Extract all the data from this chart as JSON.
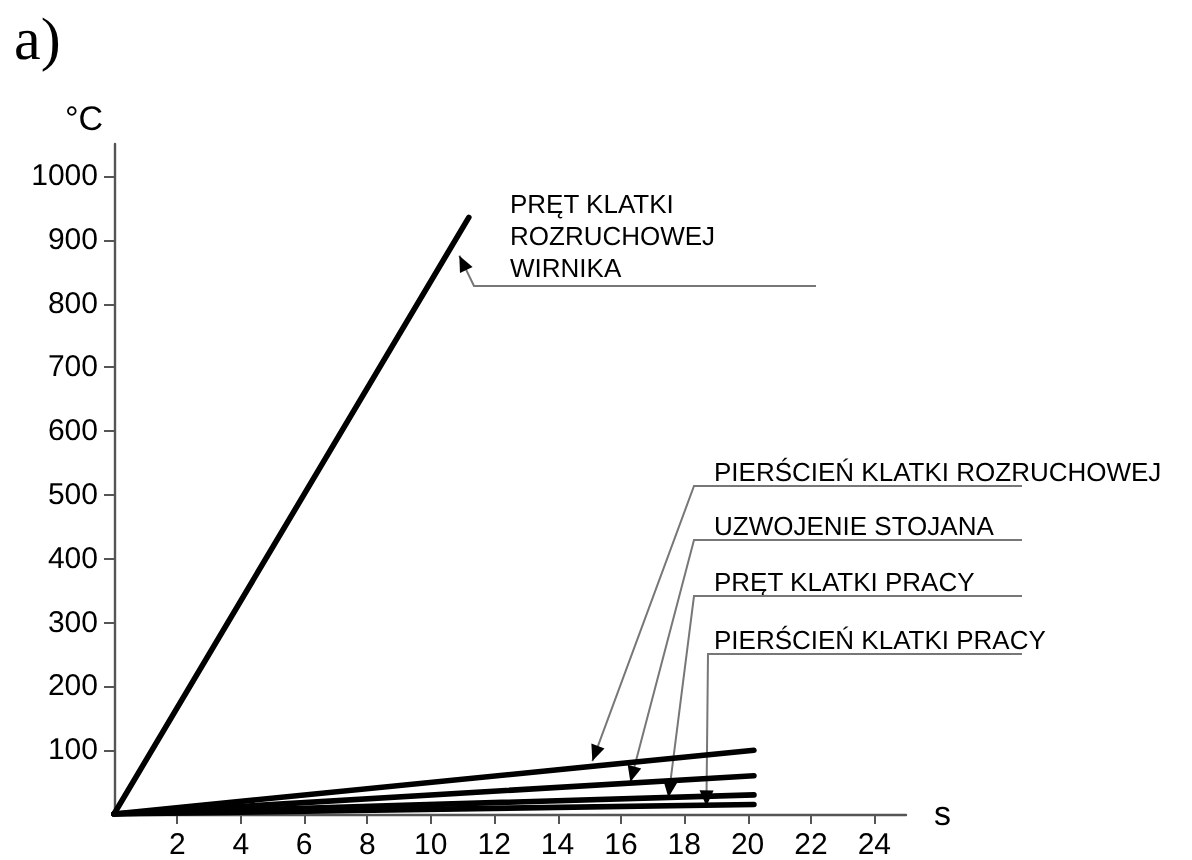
{
  "chart_data": {
    "type": "line",
    "title": "a)",
    "xlabel": "s",
    "ylabel": "°C",
    "series": [
      {
        "color": "#000000",
        "x": [
          0,
          11.2
        ],
        "values": [
          0,
          935
        ]
      },
      {
        "color": "#000000",
        "x": [
          0,
          20.2
        ],
        "values": [
          0,
          100
        ]
      },
      {
        "color": "#000000",
        "x": [
          0,
          20.2
        ],
        "values": [
          0,
          60
        ]
      },
      {
        "color": "#000000",
        "x": [
          0,
          20.2
        ],
        "values": [
          0,
          30
        ]
      },
      {
        "color": "#000000",
        "x": [
          0,
          20.2
        ],
        "values": [
          0,
          15
        ]
      }
    ],
    "annotations": [
      {
        "text": "PRĘT KLATKI\nROZRUCHOWEJ\nWIRNIKA",
        "x": 10.9,
        "y": 875
      },
      {
        "text": "PIERŚCIEŃ KLATKI ROZRUCHOWEJ",
        "x": 15.1,
        "y": 83
      },
      {
        "text": "UZWOJENIE STOJANA",
        "x": 16.3,
        "y": 50
      },
      {
        "text": "PRĘT KLATKI PRACY",
        "x": 17.5,
        "y": 26
      },
      {
        "text": "PIERŚCIEŃ KLATKI PRACY",
        "x": 18.7,
        "y": 12
      }
    ],
    "xlim": [
      0,
      25
    ],
    "xticks": [
      2,
      4,
      6,
      8,
      10,
      12,
      14,
      16,
      18,
      20,
      22,
      24
    ],
    "ylim": [
      0,
      1050
    ],
    "yticks": [
      100,
      200,
      300,
      400,
      500,
      600,
      700,
      800,
      900,
      1000
    ],
    "grid": false,
    "marker": "none",
    "line_style": "solid"
  }
}
